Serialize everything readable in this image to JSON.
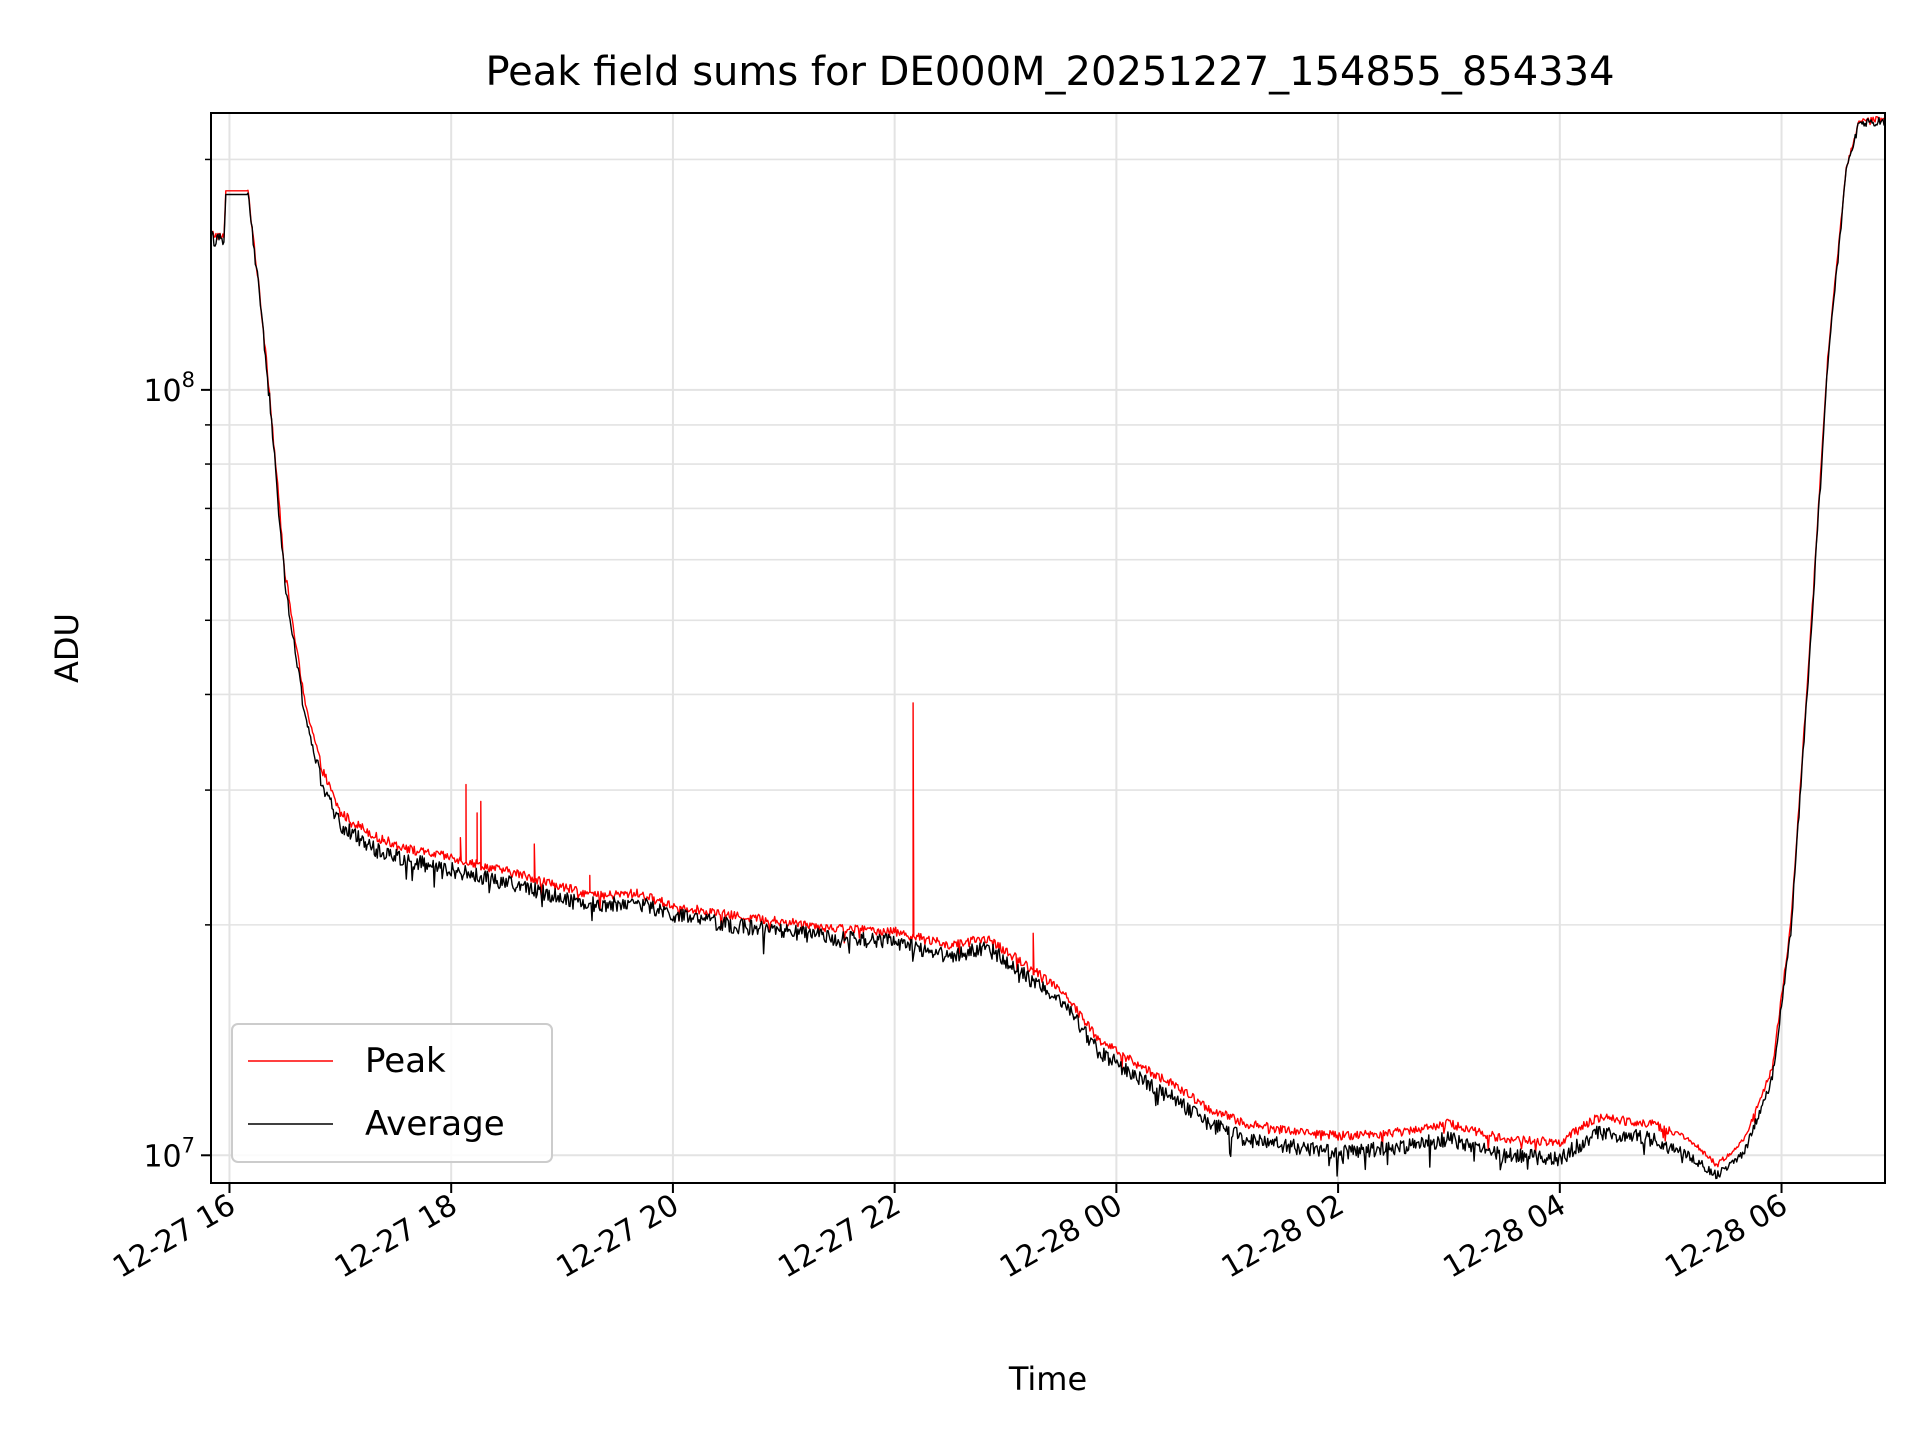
{
  "chart_data": {
    "type": "line",
    "title": "Peak field sums for DE000M_20251227_154855_854334",
    "xlabel": "Time",
    "ylabel": "ADU",
    "yscale": "log",
    "ylim": [
      9200000,
      230000000
    ],
    "xlim": [
      "12-27 15:50",
      "12-28 06:56"
    ],
    "grid": true,
    "legend": {
      "placement": "lower-left"
    },
    "x_ticks": [
      "12-27 16",
      "12-27 18",
      "12-27 20",
      "12-27 22",
      "12-28 00",
      "12-28 02",
      "12-28 04",
      "12-28 06"
    ],
    "y_ticks": [
      {
        "base": "10",
        "exp": "7",
        "value": 10000000
      },
      {
        "base": "10",
        "exp": "8",
        "value": 100000000
      }
    ],
    "series": [
      {
        "name": "Peak",
        "color": "#ff0000",
        "points": [
          [
            "12-27 15:50",
            160000000
          ],
          [
            "12-27 15:57",
            158000000
          ],
          [
            "12-27 15:58",
            182000000
          ],
          [
            "12-27 16:10",
            182000000
          ],
          [
            "12-27 16:14",
            150000000
          ],
          [
            "12-27 16:20",
            110000000
          ],
          [
            "12-27 16:25",
            80000000
          ],
          [
            "12-27 16:30",
            58000000
          ],
          [
            "12-27 16:40",
            40000000
          ],
          [
            "12-27 16:50",
            32000000
          ],
          [
            "12-27 17:00",
            28000000
          ],
          [
            "12-27 17:20",
            26000000
          ],
          [
            "12-27 17:40",
            25000000
          ],
          [
            "12-27 18:00",
            24500000
          ],
          [
            "12-27 18:20",
            23800000
          ],
          [
            "12-27 18:40",
            23200000
          ],
          [
            "12-27 19:00",
            22400000
          ],
          [
            "12-27 19:20",
            21800000
          ],
          [
            "12-27 19:40",
            22000000
          ],
          [
            "12-27 20:00",
            21200000
          ],
          [
            "12-27 20:30",
            20600000
          ],
          [
            "12-27 21:00",
            20200000
          ],
          [
            "12-27 21:30",
            19800000
          ],
          [
            "12-27 22:00",
            19600000
          ],
          [
            "12-27 22:30",
            18800000
          ],
          [
            "12-27 22:50",
            19200000
          ],
          [
            "12-27 23:10",
            17800000
          ],
          [
            "12-27 23:30",
            16500000
          ],
          [
            "12-27 23:50",
            14200000
          ],
          [
            "12-28 00:10",
            13200000
          ],
          [
            "12-28 00:30",
            12400000
          ],
          [
            "12-28 00:50",
            11500000
          ],
          [
            "12-28 01:10",
            11000000
          ],
          [
            "12-28 01:30",
            10800000
          ],
          [
            "12-28 02:00",
            10600000
          ],
          [
            "12-28 02:30",
            10700000
          ],
          [
            "12-28 03:00",
            11000000
          ],
          [
            "12-28 03:30",
            10500000
          ],
          [
            "12-28 04:00",
            10400000
          ],
          [
            "12-28 04:20",
            11200000
          ],
          [
            "12-28 04:50",
            11000000
          ],
          [
            "12-28 05:10",
            10500000
          ],
          [
            "12-28 05:25",
            9700000
          ],
          [
            "12-28 05:40",
            10500000
          ],
          [
            "12-28 05:55",
            13000000
          ],
          [
            "12-28 06:05",
            20000000
          ],
          [
            "12-28 06:15",
            45000000
          ],
          [
            "12-28 06:25",
            110000000
          ],
          [
            "12-28 06:35",
            195000000
          ],
          [
            "12-28 06:42",
            225000000
          ],
          [
            "12-28 06:56",
            226000000
          ]
        ],
        "spikes": [
          [
            "12-27 18:05",
            26000000
          ],
          [
            "12-27 18:08",
            30500000
          ],
          [
            "12-27 18:14",
            28000000
          ],
          [
            "12-27 18:16",
            29000000
          ],
          [
            "12-27 18:45",
            25500000
          ],
          [
            "12-27 19:15",
            23200000
          ],
          [
            "12-27 22:10",
            39000000
          ],
          [
            "12-27 23:15",
            19500000
          ]
        ]
      },
      {
        "name": "Average",
        "color": "#000000",
        "points": [
          [
            "12-27 15:50",
            158000000
          ],
          [
            "12-27 15:57",
            156000000
          ],
          [
            "12-27 15:58",
            180000000
          ],
          [
            "12-27 16:10",
            180000000
          ],
          [
            "12-27 16:14",
            148000000
          ],
          [
            "12-27 16:20",
            108000000
          ],
          [
            "12-27 16:25",
            78000000
          ],
          [
            "12-27 16:30",
            56000000
          ],
          [
            "12-27 16:40",
            38500000
          ],
          [
            "12-27 16:50",
            30500000
          ],
          [
            "12-27 17:00",
            27000000
          ],
          [
            "12-27 17:20",
            25000000
          ],
          [
            "12-27 17:40",
            24200000
          ],
          [
            "12-27 18:00",
            23600000
          ],
          [
            "12-27 18:20",
            23000000
          ],
          [
            "12-27 18:40",
            22400000
          ],
          [
            "12-27 19:00",
            21700000
          ],
          [
            "12-27 19:20",
            21200000
          ],
          [
            "12-27 19:40",
            21400000
          ],
          [
            "12-27 20:00",
            20600000
          ],
          [
            "12-27 20:30",
            20000000
          ],
          [
            "12-27 21:00",
            19600000
          ],
          [
            "12-27 21:30",
            19200000
          ],
          [
            "12-27 22:00",
            19000000
          ],
          [
            "12-27 22:30",
            18200000
          ],
          [
            "12-27 22:50",
            18700000
          ],
          [
            "12-27 23:10",
            17200000
          ],
          [
            "12-27 23:30",
            16000000
          ],
          [
            "12-27 23:50",
            13700000
          ],
          [
            "12-28 00:10",
            12700000
          ],
          [
            "12-28 00:30",
            11900000
          ],
          [
            "12-28 00:50",
            11000000
          ],
          [
            "12-28 01:10",
            10500000
          ],
          [
            "12-28 01:30",
            10300000
          ],
          [
            "12-28 02:00",
            10100000
          ],
          [
            "12-28 02:30",
            10200000
          ],
          [
            "12-28 03:00",
            10500000
          ],
          [
            "12-28 03:30",
            10000000
          ],
          [
            "12-28 04:00",
            9900000
          ],
          [
            "12-28 04:20",
            10700000
          ],
          [
            "12-28 04:50",
            10500000
          ],
          [
            "12-28 05:10",
            10000000
          ],
          [
            "12-28 05:25",
            9400000
          ],
          [
            "12-28 05:40",
            10100000
          ],
          [
            "12-28 05:55",
            12600000
          ],
          [
            "12-28 06:05",
            19500000
          ],
          [
            "12-28 06:15",
            44000000
          ],
          [
            "12-28 06:25",
            108000000
          ],
          [
            "12-28 06:35",
            192000000
          ],
          [
            "12-28 06:42",
            223000000
          ],
          [
            "12-28 06:56",
            225000000
          ]
        ]
      }
    ]
  }
}
